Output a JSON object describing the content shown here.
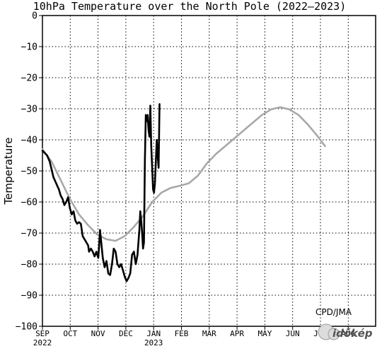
{
  "chart_data": {
    "type": "line",
    "title": "10hPa Temperature over the North Pole (2022–2023)",
    "ylabel": "Temperature",
    "xlabel": "",
    "ylim": [
      -100,
      0
    ],
    "yticks": [
      0,
      -10,
      -20,
      -30,
      -40,
      -50,
      -60,
      -70,
      -80,
      -90,
      -100
    ],
    "xticks": [
      "SEP",
      "OCT",
      "NOV",
      "DEC",
      "JAN",
      "FEB",
      "MAR",
      "APR",
      "MAY",
      "JUN",
      "JUL",
      "AUG"
    ],
    "xtick_years": {
      "SEP": "2022",
      "JAN": "2023"
    },
    "grid": true,
    "series": [
      {
        "role": "climatology",
        "color": "#a8a8a8",
        "points": [
          [
            0,
            -43
          ],
          [
            10,
            -47
          ],
          [
            20,
            -53
          ],
          [
            30,
            -59
          ],
          [
            40,
            -64
          ],
          [
            50,
            -67.5
          ],
          [
            60,
            -70.5
          ],
          [
            70,
            -72
          ],
          [
            80,
            -72.5
          ],
          [
            90,
            -71
          ],
          [
            100,
            -68
          ],
          [
            110,
            -64.5
          ],
          [
            120,
            -60
          ],
          [
            130,
            -57
          ],
          [
            140,
            -55.5
          ],
          [
            150,
            -54.8
          ],
          [
            160,
            -54
          ],
          [
            170,
            -51.5
          ],
          [
            180,
            -47.5
          ],
          [
            190,
            -44.5
          ],
          [
            200,
            -42
          ],
          [
            210,
            -39.5
          ],
          [
            220,
            -37
          ],
          [
            230,
            -34.5
          ],
          [
            240,
            -32
          ],
          [
            250,
            -30.2
          ],
          [
            260,
            -29.5
          ],
          [
            270,
            -30.2
          ],
          [
            280,
            -32
          ],
          [
            290,
            -35
          ],
          [
            300,
            -38.5
          ],
          [
            305,
            -40.5
          ],
          [
            309,
            -42
          ]
        ]
      },
      {
        "role": "observed",
        "color": "#000000",
        "points": [
          [
            0,
            -43.5
          ],
          [
            5,
            -45
          ],
          [
            8,
            -47
          ],
          [
            12,
            -52
          ],
          [
            15,
            -54
          ],
          [
            18,
            -56
          ],
          [
            20,
            -58
          ],
          [
            22,
            -59
          ],
          [
            24,
            -61
          ],
          [
            26,
            -60
          ],
          [
            28,
            -58.5
          ],
          [
            30,
            -62
          ],
          [
            32,
            -64
          ],
          [
            34,
            -63
          ],
          [
            36,
            -66
          ],
          [
            38,
            -67
          ],
          [
            40,
            -66.5
          ],
          [
            42,
            -67
          ],
          [
            44,
            -71
          ],
          [
            46,
            -72
          ],
          [
            48,
            -73
          ],
          [
            50,
            -74
          ],
          [
            51,
            -76
          ],
          [
            53,
            -75
          ],
          [
            55,
            -76
          ],
          [
            57,
            -77.5
          ],
          [
            59,
            -76
          ],
          [
            61,
            -78
          ],
          [
            62,
            -74
          ],
          [
            63,
            -69
          ],
          [
            64,
            -72
          ],
          [
            66,
            -78
          ],
          [
            68,
            -81
          ],
          [
            70,
            -79
          ],
          [
            72,
            -83
          ],
          [
            74,
            -83.5
          ],
          [
            76,
            -80
          ],
          [
            78,
            -75
          ],
          [
            80,
            -76
          ],
          [
            82,
            -80
          ],
          [
            84,
            -81
          ],
          [
            86,
            -80
          ],
          [
            88,
            -82
          ],
          [
            90,
            -84
          ],
          [
            92,
            -85.5
          ],
          [
            94,
            -84.5
          ],
          [
            96,
            -83
          ],
          [
            98,
            -77
          ],
          [
            100,
            -76
          ],
          [
            102,
            -80
          ],
          [
            104,
            -77
          ],
          [
            106,
            -69
          ],
          [
            107,
            -63
          ],
          [
            108,
            -66
          ],
          [
            109,
            -70
          ],
          [
            110,
            -75
          ],
          [
            111,
            -73
          ],
          [
            112,
            -47
          ],
          [
            113,
            -32
          ],
          [
            114,
            -34
          ],
          [
            115,
            -32
          ],
          [
            116,
            -37
          ],
          [
            117,
            -39
          ],
          [
            118,
            -29
          ],
          [
            119,
            -42
          ],
          [
            120,
            -49
          ],
          [
            121,
            -56
          ],
          [
            122,
            -57
          ],
          [
            123,
            -54
          ],
          [
            124,
            -47
          ],
          [
            125,
            -40
          ],
          [
            126,
            -45
          ],
          [
            127,
            -49
          ],
          [
            128,
            -28.5
          ]
        ]
      }
    ]
  },
  "annotations": {
    "credit": "CPD/JMA",
    "watermark": "időkép"
  }
}
